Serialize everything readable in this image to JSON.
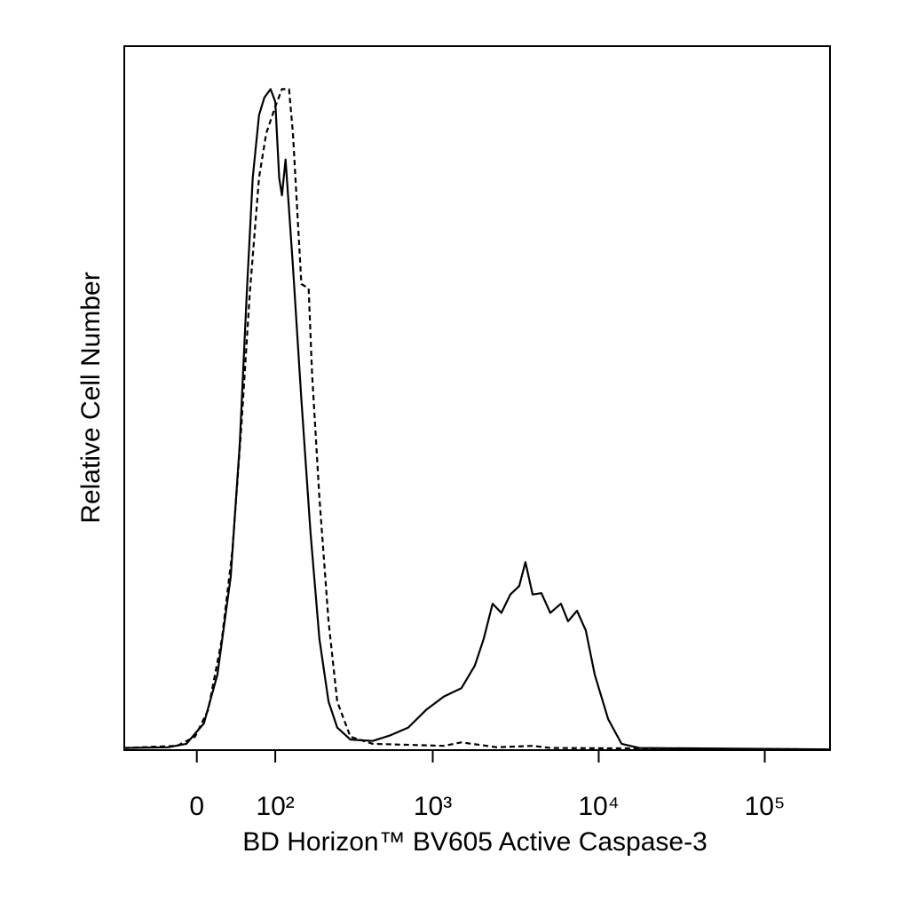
{
  "chart_data": {
    "type": "line",
    "x_label": "BD Horizon™ BV605 Active Caspase-3",
    "y_label": "Relative Cell Number",
    "x_scale": "biexponential",
    "xlim": [
      -90,
      247000
    ],
    "xticks": [
      0,
      {
        "value": 100,
        "label": "10²"
      },
      {
        "value": 1000,
        "label": "10³"
      },
      {
        "value": 10000,
        "label": "10⁴"
      },
      {
        "value": 100000,
        "label": "10⁵"
      }
    ],
    "ylim": [
      0,
      100
    ],
    "series": [
      {
        "color": "#000000",
        "line_style": "solid",
        "x": [
          -90,
          -31,
          -11,
          7.5,
          22,
          37,
          48,
          57,
          65,
          74,
          82,
          92,
          100,
          107,
          112,
          119,
          134,
          153,
          176,
          201,
          230,
          261,
          315,
          432,
          555,
          711,
          910,
          1165,
          1490,
          1794,
          2029,
          2295,
          2592,
          2934,
          3321,
          3618,
          3998,
          4514,
          5107,
          5920,
          6536,
          7395,
          8360,
          9462,
          11400,
          13718,
          17533,
          247000
        ],
        "values": [
          0.3,
          0.4,
          0.9,
          3.8,
          10.7,
          24.6,
          43.5,
          64.9,
          81.3,
          90.2,
          92.7,
          93.9,
          92.1,
          81.3,
          78.8,
          83.9,
          68.7,
          49.8,
          30.9,
          15.8,
          6.9,
          3.2,
          1.5,
          1.3,
          2.1,
          3.2,
          5.7,
          7.6,
          8.8,
          12.0,
          15.8,
          20.8,
          19.5,
          22.1,
          23.3,
          26.7,
          22.1,
          22.3,
          19.5,
          20.8,
          18.3,
          19.8,
          17.0,
          10.7,
          4.4,
          0.9,
          0.3,
          0.1
        ]
      },
      {
        "color": "#000000",
        "line_style": "dashed",
        "x": [
          -90,
          -21,
          -1.9,
          12,
          27,
          39,
          50,
          61,
          74,
          85,
          100,
          112,
          126,
          134,
          153,
          171,
          180,
          201,
          230,
          261,
          315,
          432,
          1165,
          1490,
          2440,
          3998,
          5107,
          247000
        ],
        "values": [
          0.3,
          0.6,
          1.9,
          5.7,
          15.8,
          28.4,
          46.0,
          64.9,
          81.3,
          87.6,
          91.4,
          93.9,
          93.9,
          87.6,
          66.2,
          65.6,
          53.6,
          35.9,
          18.3,
          6.9,
          1.9,
          0.9,
          0.6,
          1.1,
          0.4,
          0.6,
          0.3,
          0.1
        ]
      }
    ]
  }
}
